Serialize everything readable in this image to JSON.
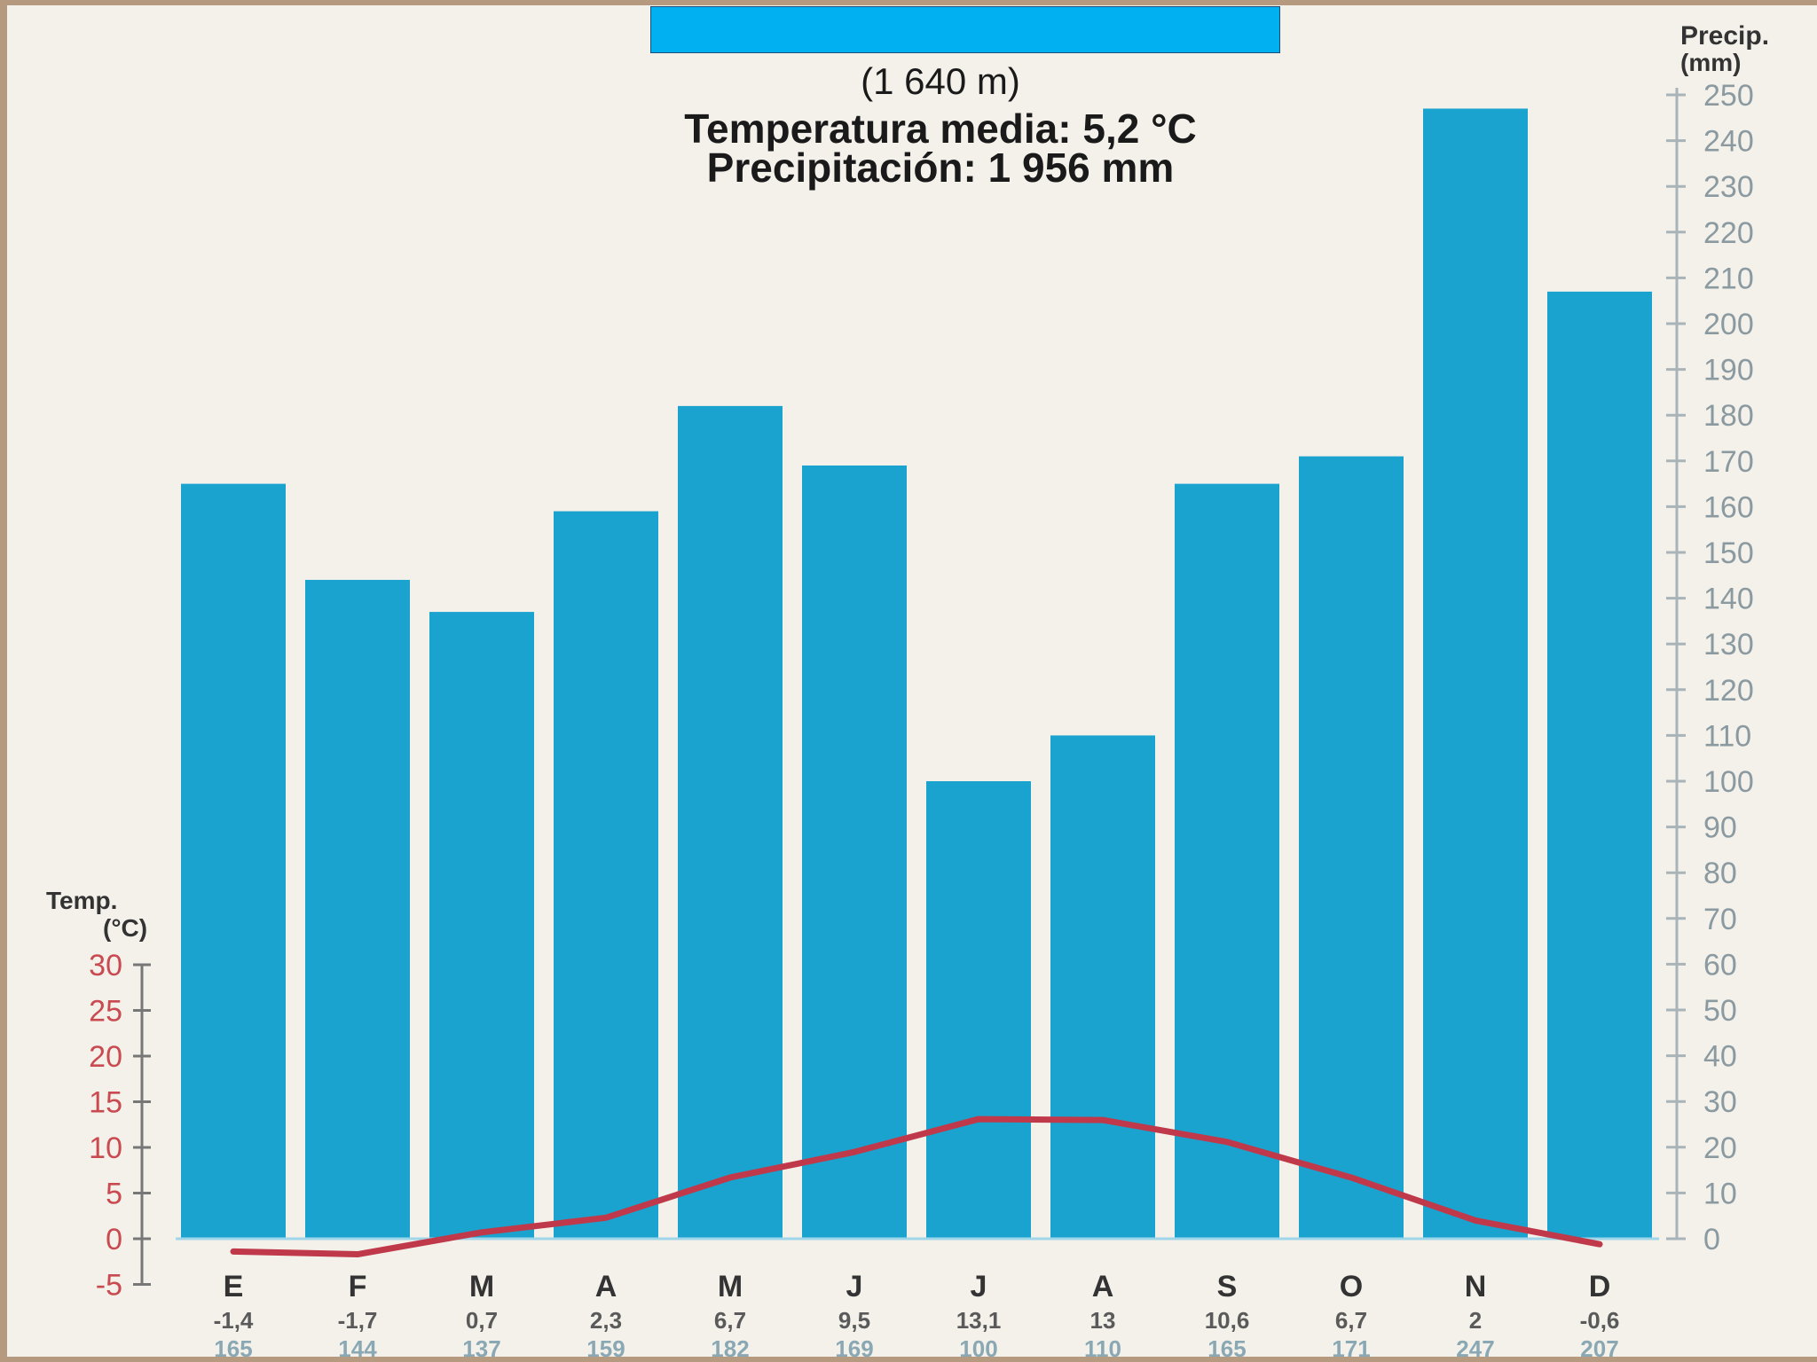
{
  "header": {
    "altitude": "(1 640 m)",
    "mean_temperature": "Temperatura media: 5,2 °C",
    "total_precipitation": "Precipitación: 1 956 mm"
  },
  "chart_data": {
    "type": "bar",
    "categories": [
      "E",
      "F",
      "M",
      "A",
      "M",
      "J",
      "J",
      "A",
      "S",
      "O",
      "N",
      "D"
    ],
    "series": [
      {
        "type": "bar",
        "axis": "right",
        "values": [
          165,
          144,
          137,
          159,
          182,
          169,
          100,
          110,
          165,
          171,
          247,
          207
        ],
        "value_labels": [
          "165",
          "144",
          "137",
          "159",
          "182",
          "169",
          "100",
          "110",
          "165",
          "171",
          "247",
          "207"
        ],
        "color": "#1aa3cf"
      },
      {
        "type": "line",
        "axis": "left",
        "values": [
          -1.4,
          -1.7,
          0.7,
          2.3,
          6.7,
          9.5,
          13.1,
          13,
          10.6,
          6.7,
          2,
          -0.6
        ],
        "value_labels": [
          "-1,4",
          "-1,7",
          "0,7",
          "2,3",
          "6,7",
          "9,5",
          "13,1",
          "13",
          "10,6",
          "6,7",
          "2",
          "-0,6"
        ],
        "color": "#c0394a"
      }
    ],
    "left_axis": {
      "label_line1": "Temp.",
      "label_line2": "(°C)",
      "ylim": [
        -5,
        30
      ],
      "ticks": [
        -5,
        0,
        5,
        10,
        15,
        20,
        25,
        30
      ],
      "color": "#c94a50"
    },
    "right_axis": {
      "label_line1": "Precip.",
      "label_line2": "(mm)",
      "ylim": [
        0,
        250
      ],
      "ticks": [
        0,
        10,
        20,
        30,
        40,
        50,
        60,
        70,
        80,
        90,
        100,
        110,
        120,
        130,
        140,
        150,
        160,
        170,
        180,
        190,
        200,
        210,
        220,
        230,
        240,
        250
      ],
      "color": "#8a9aa0"
    },
    "grid": false
  }
}
